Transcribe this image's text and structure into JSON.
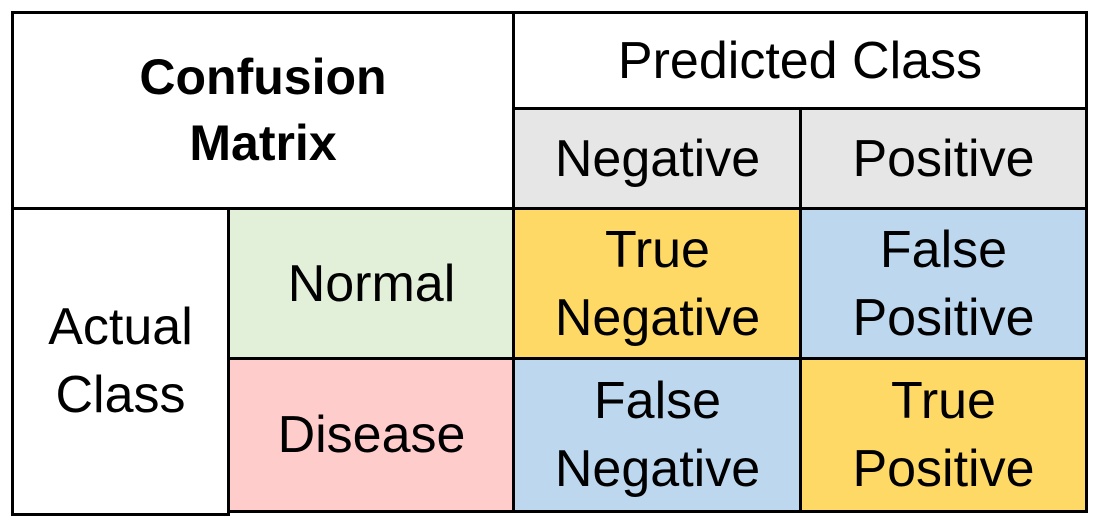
{
  "matrix": {
    "title_line1": "Confusion",
    "title_line2": "Matrix",
    "predicted_header": "Predicted Class",
    "predicted_negative": "Negative",
    "predicted_positive": "Positive",
    "actual_line1": "Actual",
    "actual_line2": "Class",
    "actual_normal": "Normal",
    "actual_disease": "Disease",
    "tn_line1": "True",
    "tn_line2": "Negative",
    "fp_line1": "False",
    "fp_line2": "Positive",
    "fn_line1": "False",
    "fn_line2": "Negative",
    "tp_line1": "True",
    "tp_line2": "Positive"
  },
  "colors": {
    "predicted_subheader_bg": "#e6e6e6",
    "normal_bg": "#e2efd9",
    "disease_bg": "#ffcccc",
    "true_cell_bg": "#ffd966",
    "false_cell_bg": "#bdd7ee"
  }
}
